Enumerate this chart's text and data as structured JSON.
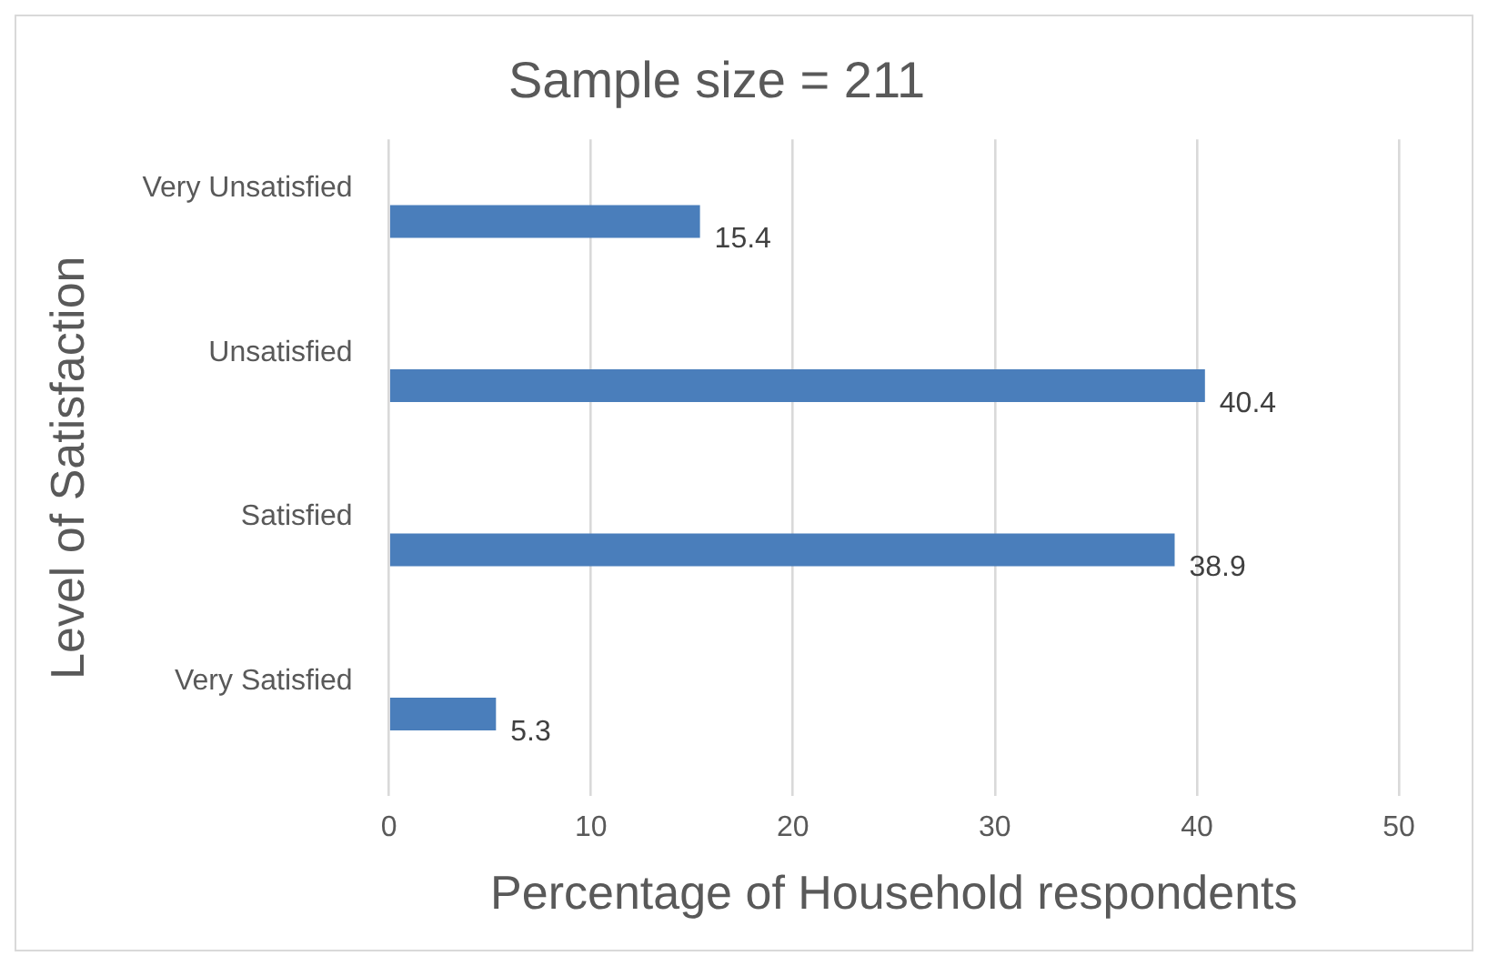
{
  "chart_data": {
    "type": "bar",
    "orientation": "horizontal",
    "title": "Sample size = 211",
    "xlabel": "Percentage of Household respondents",
    "ylabel": "Level of Satisfaction",
    "categories": [
      "Very Unsatisfied",
      "Unsatisfied",
      "Satisfied",
      "Very Satisfied"
    ],
    "values": [
      15.4,
      40.4,
      38.9,
      5.3
    ],
    "color": "#4a7ebb",
    "xlim": [
      0,
      50
    ],
    "xticks": [
      0,
      10,
      20,
      30,
      40,
      50
    ],
    "grid": "x",
    "data_labels": true
  }
}
